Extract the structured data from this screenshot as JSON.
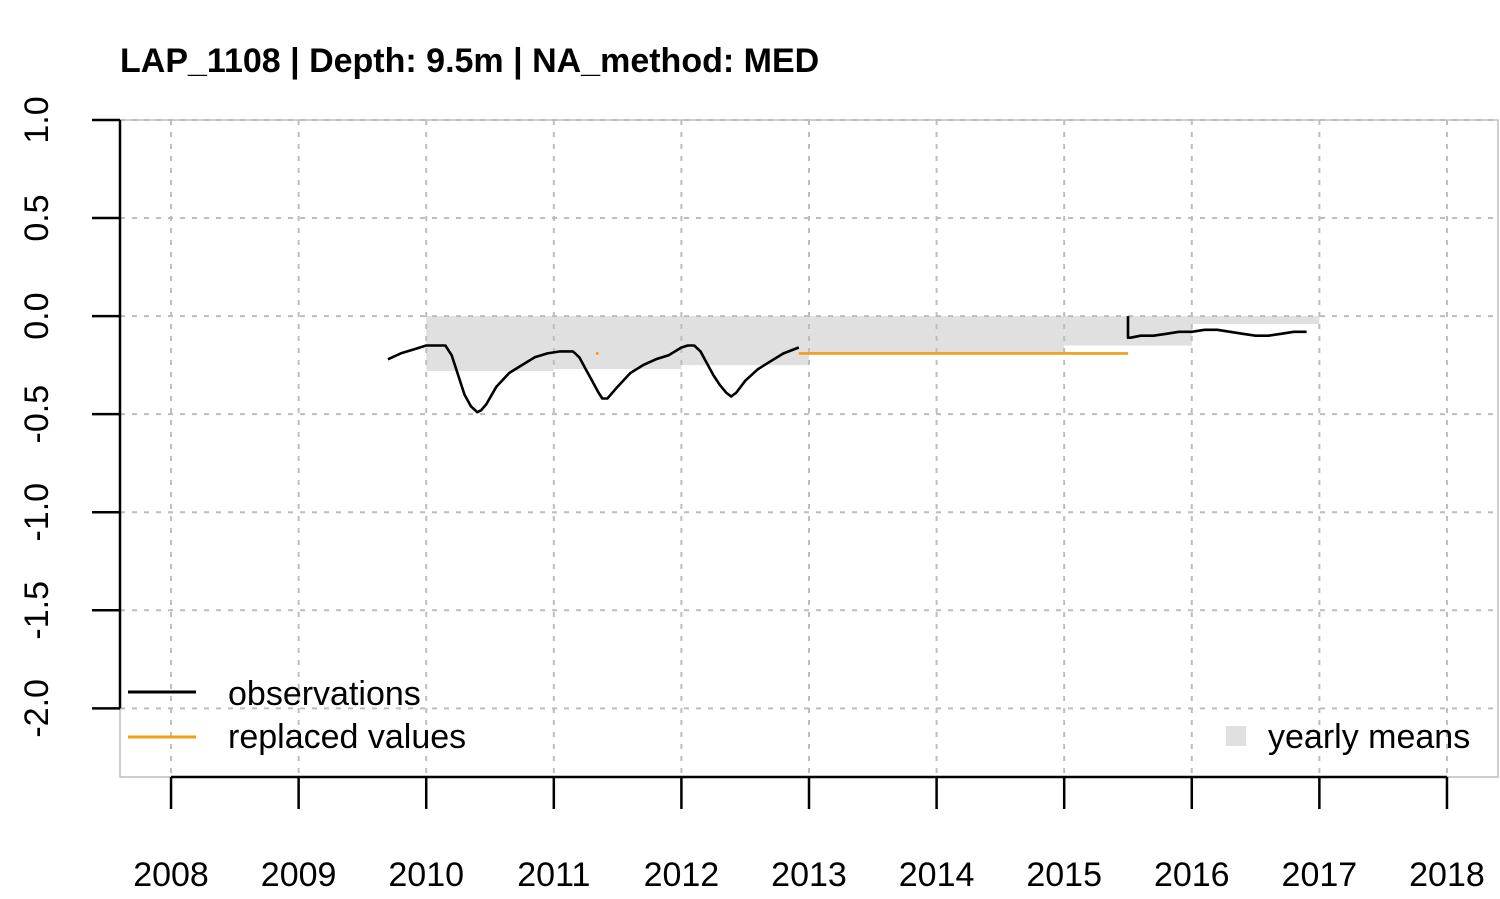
{
  "chart_data": {
    "type": "line",
    "title": "LAP_1108 | Depth: 9.5m | NA_method: MED",
    "xlabel": "",
    "ylabel": "",
    "xlim": [
      2007.6,
      2018.4
    ],
    "ylim": [
      -2.35,
      1.0
    ],
    "x_ticks": [
      "2008",
      "2009",
      "2010",
      "2011",
      "2012",
      "2013",
      "2014",
      "2015",
      "2016",
      "2017",
      "2018"
    ],
    "y_ticks": [
      "1.0",
      "0.5",
      "0.0",
      "-0.5",
      "-1.0",
      "-1.5",
      "-2.0"
    ],
    "grid": true,
    "colors": {
      "observations": "#000000",
      "replaced": "#f39c1a",
      "yearly_means": "#e0e0e0",
      "grid": "#bdbdbd"
    },
    "legend": {
      "position_left": "bottom-left",
      "position_right": "bottom-right",
      "entries": [
        {
          "label": "observations",
          "style": "line",
          "color": "#000000"
        },
        {
          "label": "replaced values",
          "style": "line",
          "color": "#f39c1a"
        },
        {
          "label": "yearly means",
          "style": "square",
          "color": "#e0e0e0"
        }
      ]
    },
    "yearly_means": [
      {
        "x0": 2010.0,
        "x1": 2011.0,
        "y": -0.28
      },
      {
        "x0": 2011.0,
        "x1": 2012.0,
        "y": -0.27
      },
      {
        "x0": 2012.0,
        "x1": 2013.0,
        "y": -0.25
      },
      {
        "x0": 2013.0,
        "x1": 2014.0,
        "y": -0.19
      },
      {
        "x0": 2014.0,
        "x1": 2015.0,
        "y": -0.19
      },
      {
        "x0": 2015.0,
        "x1": 2016.0,
        "y": -0.15
      },
      {
        "x0": 2016.0,
        "x1": 2017.0,
        "y": -0.04
      }
    ],
    "series": [
      {
        "name": "observations",
        "segments": [
          {
            "x": [
              2009.7,
              2009.8,
              2009.9,
              2010.0,
              2010.1,
              2010.15,
              2010.2,
              2010.25,
              2010.3,
              2010.35,
              2010.4,
              2010.43,
              2010.47,
              2010.55,
              2010.65,
              2010.75,
              2010.85,
              2010.95,
              2011.05,
              2011.15,
              2011.2,
              2011.25,
              2011.3,
              2011.35,
              2011.38,
              2011.42,
              2011.5,
              2011.6,
              2011.7,
              2011.8,
              2011.9,
              2012.0,
              2012.05,
              2012.1,
              2012.15,
              2012.2,
              2012.25,
              2012.3,
              2012.35,
              2012.39,
              2012.43,
              2012.5,
              2012.6,
              2012.7,
              2012.8,
              2012.92
            ],
            "y": [
              -0.22,
              -0.19,
              -0.17,
              -0.15,
              -0.15,
              -0.15,
              -0.2,
              -0.3,
              -0.4,
              -0.46,
              -0.49,
              -0.48,
              -0.45,
              -0.36,
              -0.29,
              -0.25,
              -0.21,
              -0.19,
              -0.18,
              -0.18,
              -0.21,
              -0.27,
              -0.33,
              -0.39,
              -0.42,
              -0.42,
              -0.36,
              -0.29,
              -0.25,
              -0.22,
              -0.2,
              -0.16,
              -0.15,
              -0.15,
              -0.18,
              -0.24,
              -0.3,
              -0.35,
              -0.39,
              -0.41,
              -0.39,
              -0.33,
              -0.27,
              -0.23,
              -0.19,
              -0.16
            ]
          },
          {
            "x": [
              2015.5,
              2015.5,
              2015.52,
              2015.6,
              2015.7,
              2015.8,
              2015.9,
              2016.0,
              2016.1,
              2016.2,
              2016.3,
              2016.4,
              2016.5,
              2016.6,
              2016.7,
              2016.8,
              2016.9
            ],
            "y": [
              0.0,
              -0.11,
              -0.11,
              -0.1,
              -0.1,
              -0.09,
              -0.08,
              -0.08,
              -0.07,
              -0.07,
              -0.08,
              -0.09,
              -0.1,
              -0.1,
              -0.09,
              -0.08,
              -0.08
            ]
          }
        ]
      },
      {
        "name": "replaced values",
        "segments": [
          {
            "x": [
              2011.33,
              2011.35
            ],
            "y": [
              -0.19,
              -0.19
            ]
          },
          {
            "x": [
              2012.92,
              2015.5
            ],
            "y": [
              -0.19,
              -0.19
            ]
          }
        ]
      }
    ]
  }
}
